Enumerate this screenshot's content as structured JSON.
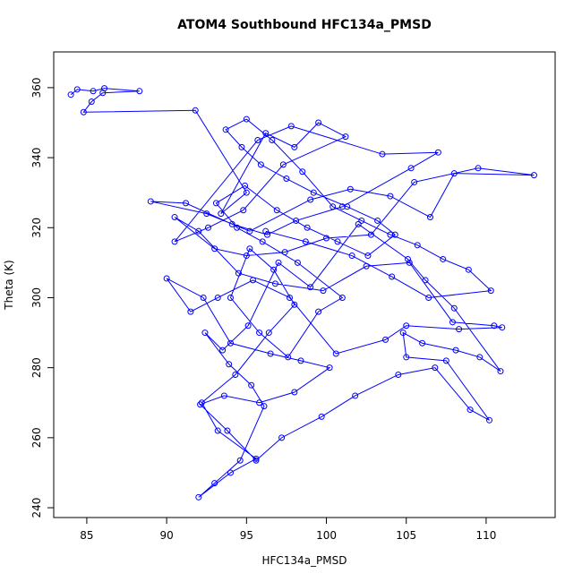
{
  "chart_data": {
    "type": "line",
    "title": "ATOM4 Southbound HFC134a_PMSD",
    "x_label": "HFC134a_PMSD",
    "y_label": "Theta (K)",
    "xlim": [
      82.93,
      114.32
    ],
    "ylim": [
      237.2,
      370.2
    ],
    "xticks": [
      85,
      90,
      95,
      100,
      105,
      110
    ],
    "yticks": [
      240,
      260,
      280,
      300,
      320,
      340,
      360
    ],
    "grid": false,
    "markers": true,
    "series": [
      {
        "color": "#0000ff",
        "x": [
          84.0,
          84.4,
          85.4,
          86.1,
          88.3,
          86.0,
          85.3,
          84.8,
          91.8,
          95.0,
          93.4,
          96.2,
          98.0,
          99.5,
          101.2,
          97.3,
          94.8,
          92.6,
          90.5,
          95.7,
          97.8,
          103.5,
          107.0,
          105.3,
          101.0,
          98.1,
          96.3,
          94.1,
          91.2,
          89.0,
          92.5,
          95.2,
          99.0,
          101.5,
          104.0,
          106.5,
          108.0,
          113.0,
          109.5,
          105.5,
          102.8,
          100.0,
          97.4,
          95.0,
          93.0,
          90.5,
          92.0,
          94.5,
          96.8,
          99.8,
          102.5,
          105.2,
          107.9,
          110.5,
          111.0,
          108.3,
          105.0,
          103.7,
          100.6,
          97.7,
          95.4,
          93.2,
          91.5,
          90.0,
          92.3,
          94.0,
          96.5,
          98.4,
          100.2,
          98.0,
          95.8,
          93.6,
          92.1,
          93.8,
          95.6,
          97.2,
          99.7,
          101.8,
          104.5,
          106.8,
          109.0,
          110.2,
          107.5,
          105.0,
          104.8,
          106.0,
          108.1,
          109.6,
          110.9,
          108.0,
          106.2,
          105.1,
          102.0,
          99.0,
          97.0,
          95.1,
          93.5,
          92.4,
          93.9,
          95.3,
          96.1,
          94.6,
          93.0,
          92.0,
          94.0,
          95.6,
          93.2,
          92.2,
          94.3,
          96.4,
          98.0,
          96.7,
          95.2,
          94.0,
          95.8,
          97.6,
          99.5,
          101.0,
          98.2,
          96.0,
          94.4,
          93.1,
          94.9,
          96.9,
          98.8,
          100.7,
          102.6,
          104.3,
          103.2,
          101.3,
          99.2,
          97.5,
          95.9,
          94.7,
          93.7,
          95.0,
          96.6,
          98.5,
          100.4,
          102.2,
          104.0,
          105.7,
          107.3,
          108.9,
          110.3,
          106.4,
          104.1,
          101.6,
          98.7,
          96.2
        ],
        "values": [
          358,
          359.5,
          359,
          359.8,
          359,
          358.5,
          356,
          353,
          353.5,
          330,
          324,
          347,
          343,
          350,
          346,
          338,
          325,
          320,
          316,
          345,
          349,
          341,
          341.5,
          337,
          326,
          322,
          318,
          321,
          327,
          327.5,
          324,
          319,
          328,
          331,
          329,
          323,
          335.5,
          335,
          337,
          333,
          318,
          317,
          313,
          312,
          314,
          323,
          319,
          307,
          304,
          302,
          309,
          310,
          293,
          292,
          291.5,
          291,
          292,
          288,
          284,
          300,
          305,
          300,
          296,
          305.5,
          300,
          287,
          284,
          282,
          280,
          273,
          270,
          272,
          269.5,
          262,
          253.5,
          260,
          266,
          272,
          278,
          280,
          268,
          265,
          282,
          283,
          290,
          287,
          285,
          283,
          279,
          297,
          305,
          311,
          321,
          303,
          310,
          292,
          285,
          290,
          281,
          275,
          269,
          253.5,
          247,
          243,
          250,
          254,
          262,
          270,
          278,
          290,
          298,
          308,
          314,
          300,
          290,
          283,
          296,
          300,
          310,
          316,
          320,
          327,
          332,
          325,
          320,
          316,
          312,
          318,
          322,
          326,
          330,
          334,
          338,
          343,
          348,
          351,
          345,
          336,
          326,
          322,
          318,
          315,
          311,
          308,
          302,
          300,
          306,
          312,
          316,
          319
        ]
      }
    ]
  }
}
